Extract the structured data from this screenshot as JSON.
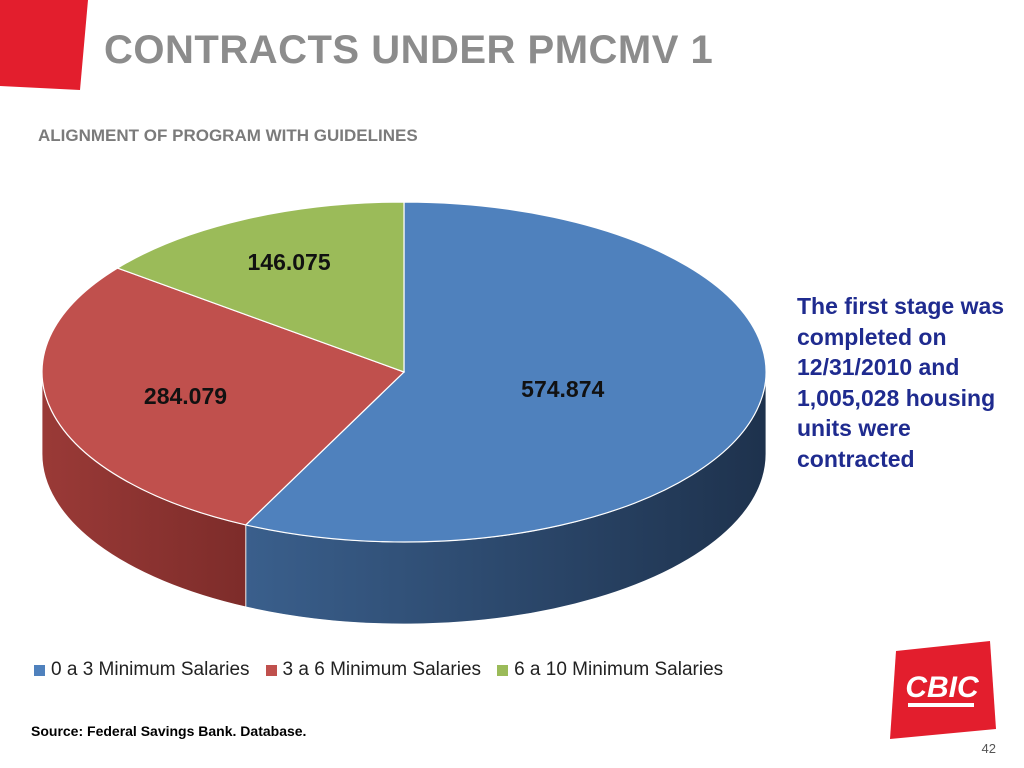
{
  "slide": {
    "title": "CONTRACTS UNDER PMCMV 1",
    "subtitle": "ALIGNMENT OF PROGRAM WITH GUIDELINES",
    "note": "The first stage was completed on 12/31/2010 and 1,005,028 housing units were contracted",
    "source": "Source: Federal Savings Bank. Database.",
    "page_number": "42",
    "logo_text": "CBIC",
    "brand_color": "#e31e2d"
  },
  "chart_data": {
    "type": "pie",
    "style": "3d",
    "legend_position": "bottom",
    "slices": [
      {
        "label": "0 a 3 Minimum Salaries",
        "value": 574874,
        "display": "574.874",
        "color": "#4f81bd",
        "side_color": "#2a4668"
      },
      {
        "label": "3 a 6 Minimum Salaries",
        "value": 284079,
        "display": "284.079",
        "color": "#c0504d",
        "side_color": "#8e3533"
      },
      {
        "label": "6 a 10 Minimum Salaries",
        "value": 146075,
        "display": "146.075",
        "color": "#9bbb59",
        "side_color": "#6e8a3a"
      }
    ]
  }
}
